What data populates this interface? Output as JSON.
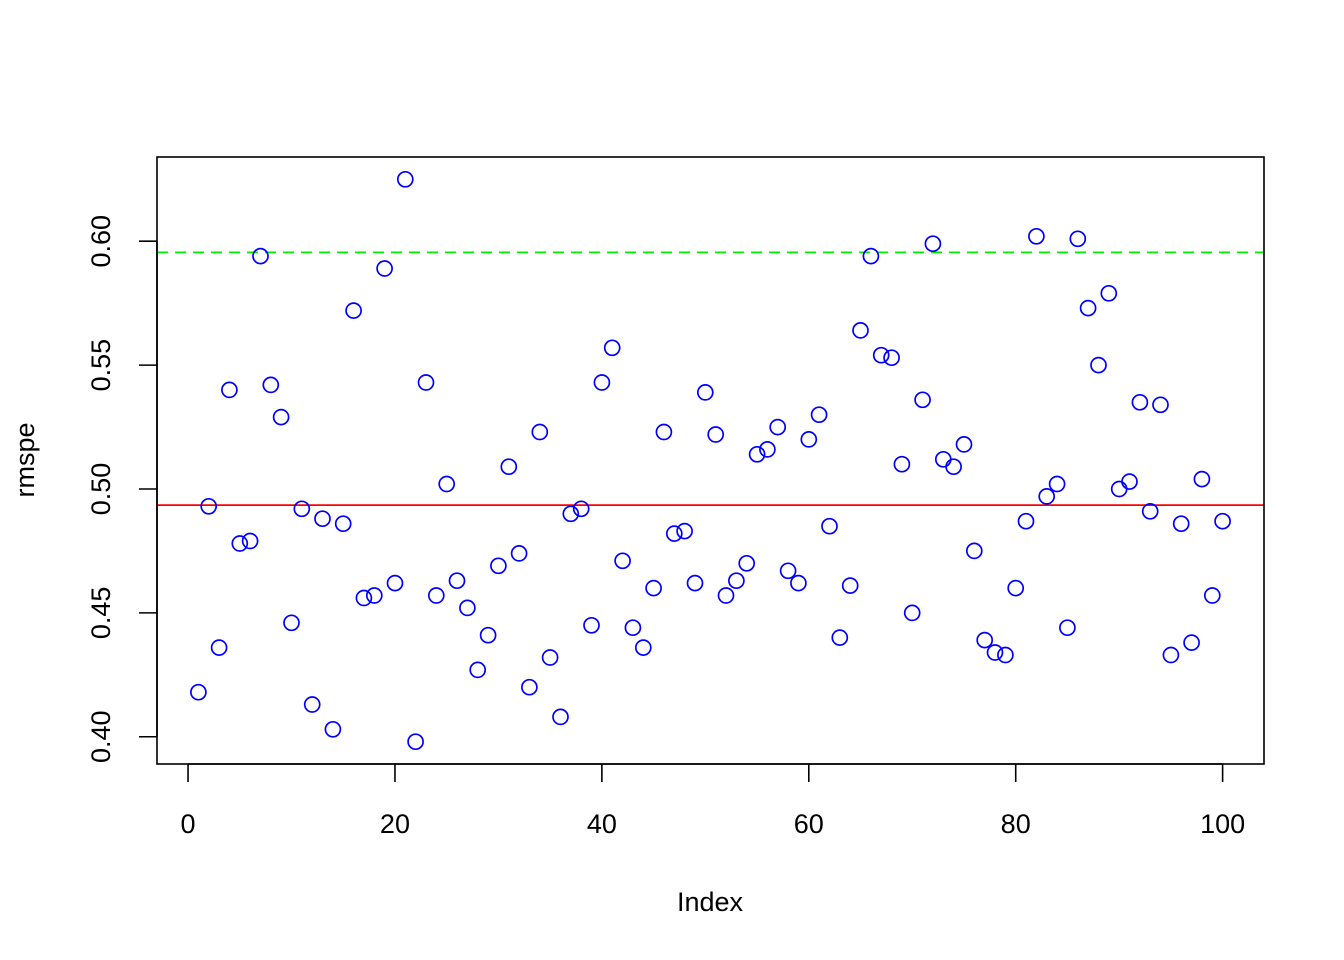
{
  "chart_data": {
    "type": "scatter",
    "title": "",
    "xlabel": "Index",
    "ylabel": "rmspe",
    "xlim": [
      -3,
      104
    ],
    "ylim": [
      0.389,
      0.634
    ],
    "x_ticks": [
      0,
      20,
      40,
      60,
      80,
      100
    ],
    "x_tick_labels": [
      "0",
      "20",
      "40",
      "60",
      "80",
      "100"
    ],
    "y_ticks": [
      0.4,
      0.45,
      0.5,
      0.55,
      0.6
    ],
    "y_tick_labels": [
      "0.40",
      "0.45",
      "0.50",
      "0.55",
      "0.60"
    ],
    "grid": false,
    "point_color": "#0000ff",
    "series": [
      {
        "x": [
          1,
          2,
          3,
          4,
          5,
          6,
          7,
          8,
          9,
          10,
          11,
          12,
          13,
          14,
          15,
          16,
          17,
          18,
          19,
          20,
          21,
          22,
          23,
          24,
          25,
          26,
          27,
          28,
          29,
          30,
          31,
          32,
          33,
          34,
          35,
          36,
          37,
          38,
          39,
          40,
          41,
          42,
          43,
          44,
          45,
          46,
          47,
          48,
          49,
          50,
          51,
          52,
          53,
          54,
          55,
          56,
          57,
          58,
          59,
          60,
          61,
          62,
          63,
          64,
          65,
          66,
          67,
          68,
          69,
          70,
          71,
          72,
          73,
          74,
          75,
          76,
          77,
          78,
          79,
          80,
          81,
          82,
          83,
          84,
          85,
          86,
          87,
          88,
          89,
          90,
          91,
          92,
          93,
          94,
          95,
          96,
          97,
          98,
          99,
          100
        ],
        "values": [
          0.418,
          0.493,
          0.436,
          0.54,
          0.478,
          0.479,
          0.594,
          0.542,
          0.529,
          0.446,
          0.492,
          0.413,
          0.488,
          0.403,
          0.486,
          0.572,
          0.456,
          0.457,
          0.589,
          0.462,
          0.625,
          0.398,
          0.543,
          0.457,
          0.502,
          0.463,
          0.452,
          0.427,
          0.441,
          0.469,
          0.509,
          0.474,
          0.42,
          0.523,
          0.432,
          0.408,
          0.49,
          0.492,
          0.445,
          0.543,
          0.557,
          0.471,
          0.444,
          0.436,
          0.46,
          0.523,
          0.482,
          0.483,
          0.462,
          0.539,
          0.522,
          0.457,
          0.463,
          0.47,
          0.514,
          0.516,
          0.525,
          0.467,
          0.462,
          0.52,
          0.53,
          0.485,
          0.44,
          0.461,
          0.564,
          0.594,
          0.554,
          0.553,
          0.51,
          0.45,
          0.536,
          0.599,
          0.512,
          0.509,
          0.518,
          0.475,
          0.439,
          0.434,
          0.433,
          0.46,
          0.487,
          0.602,
          0.497,
          0.502,
          0.444,
          0.601,
          0.573,
          0.55,
          0.579,
          0.5,
          0.503,
          0.535,
          0.491,
          0.534,
          0.433,
          0.486,
          0.438,
          0.504,
          0.457,
          0.487
        ]
      }
    ],
    "hlines": [
      {
        "y": 0.4935,
        "color": "#ff0000",
        "style": "solid"
      },
      {
        "y": 0.5955,
        "color": "#00ee00",
        "style": "dashed"
      }
    ]
  }
}
